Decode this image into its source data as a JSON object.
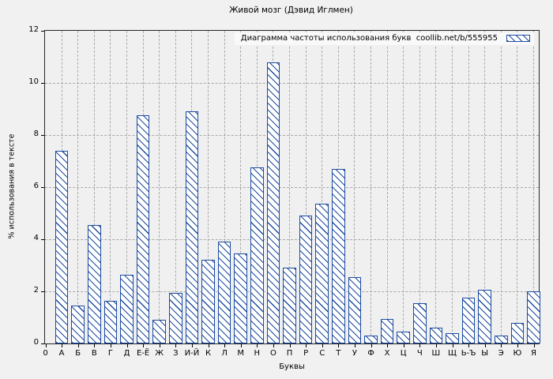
{
  "chart_data": {
    "type": "bar",
    "title": "Живой мозг (Дэвид Иглмен)",
    "legend_label": "Диаграмма частоты использования букв  coollib.net/b/555955",
    "legend_position": "top-right",
    "xlabel": "Буквы",
    "ylabel": "% использования в тексте",
    "ylim": [
      0,
      12
    ],
    "ytick_step": 2,
    "ytick_labels": [
      "0",
      "2",
      "4",
      "6",
      "8",
      "10",
      "12"
    ],
    "grid": true,
    "categories": [
      "0",
      "А",
      "Б",
      "В",
      "Г",
      "Д",
      "Е-Ё",
      "Ж",
      "З",
      "И-Й",
      "К",
      "Л",
      "М",
      "Н",
      "О",
      "П",
      "Р",
      "С",
      "Т",
      "У",
      "Ф",
      "Х",
      "Ц",
      "Ч",
      "Ш",
      "Щ",
      "Ь-Ъ",
      "Ы",
      "Э",
      "Ю",
      "Я"
    ],
    "values": [
      0,
      7.4,
      1.45,
      4.55,
      1.65,
      2.65,
      8.75,
      0.9,
      1.95,
      8.9,
      3.2,
      3.9,
      3.45,
      6.75,
      10.8,
      2.9,
      4.9,
      5.35,
      6.7,
      2.55,
      0.3,
      0.95,
      0.45,
      1.55,
      0.6,
      0.4,
      1.75,
      2.05,
      0.3,
      0.8,
      2.0
    ],
    "hatch": "\\",
    "bar_color": "#1c4ba0",
    "bar_fill": "#ffffff",
    "background": "#f1f1f1",
    "plot_background": "#f0f0f0",
    "grid_color": "#a9a9a9"
  }
}
